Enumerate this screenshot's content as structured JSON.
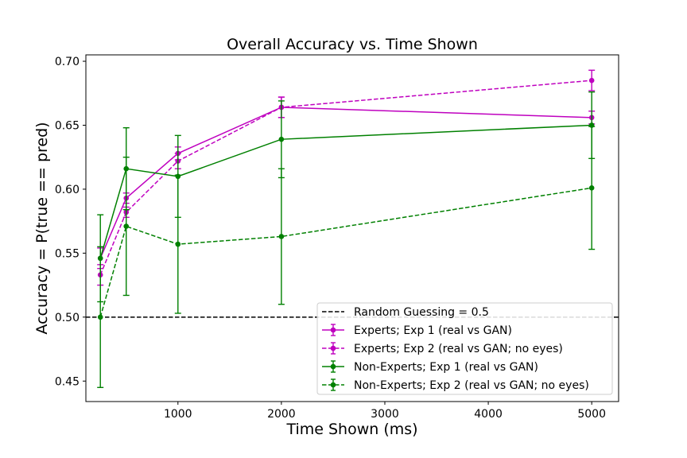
{
  "chart_data": {
    "type": "line",
    "title": "Overall Accuracy vs. Time Shown",
    "xlabel": "Time Shown (ms)",
    "ylabel": "Accuracy = P(true == pred)",
    "xlim": [
      110,
      5260
    ],
    "ylim": [
      0.434,
      0.705
    ],
    "xticks": [
      1000,
      2000,
      3000,
      4000,
      5000
    ],
    "yticks": [
      0.45,
      0.5,
      0.55,
      0.6,
      0.65,
      0.7
    ],
    "xtick_labels": [
      "1000",
      "2000",
      "3000",
      "4000",
      "5000"
    ],
    "ytick_labels": [
      "0.45",
      "0.50",
      "0.55",
      "0.60",
      "0.65",
      "0.70"
    ],
    "grid": false,
    "legend_position": "lower-right",
    "reference_line": {
      "y": 0.5,
      "label": "Random Guessing = 0.5",
      "color": "#000000"
    },
    "series": [
      {
        "name": "Experts; Exp 1 (real vs GAN)",
        "color": "#bf00bf",
        "dashed": false,
        "x": [
          250,
          500,
          1000,
          2000,
          5000
        ],
        "y": [
          0.546,
          0.593,
          0.628,
          0.664,
          0.656
        ],
        "err": [
          0.008,
          0.004,
          0.005,
          0.008,
          0.005
        ]
      },
      {
        "name": "Experts; Exp 2 (real vs GAN; no eyes)",
        "color": "#bf00bf",
        "dashed": true,
        "x": [
          250,
          500,
          1000,
          2000,
          5000
        ],
        "y": [
          0.533,
          0.582,
          0.622,
          0.664,
          0.685
        ],
        "err": [
          0.008,
          0.004,
          0.006,
          0.008,
          0.008
        ]
      },
      {
        "name": "Non-Experts; Exp 1 (real vs GAN)",
        "color": "#008000",
        "dashed": false,
        "x": [
          250,
          500,
          1000,
          2000,
          5000
        ],
        "y": [
          0.546,
          0.616,
          0.61,
          0.639,
          0.65
        ],
        "err": [
          0.034,
          0.032,
          0.032,
          0.03,
          0.026
        ]
      },
      {
        "name": "Non-Experts; Exp 2 (real vs GAN; no eyes)",
        "color": "#008000",
        "dashed": true,
        "x": [
          250,
          500,
          1000,
          2000,
          5000
        ],
        "y": [
          0.5,
          0.571,
          0.557,
          0.563,
          0.601
        ],
        "err": [
          0.055,
          0.054,
          0.054,
          0.053,
          0.048
        ]
      }
    ]
  }
}
